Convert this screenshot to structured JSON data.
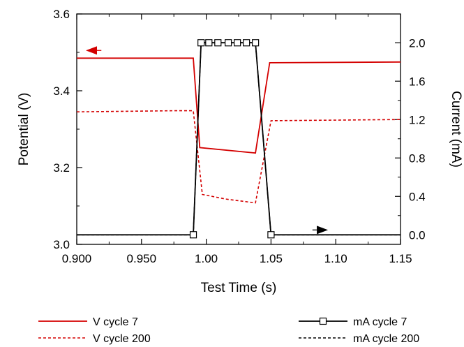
{
  "chart_data": {
    "type": "line",
    "title": "",
    "xlabel": "Test Time (s)",
    "ylabel_left": "Potential (V)",
    "ylabel_right": "Current (mA)",
    "xlim": [
      0.9,
      1.15
    ],
    "ylim_left": [
      3.0,
      3.6
    ],
    "ylim_right": [
      -0.1,
      2.3
    ],
    "x_ticks": [
      "0.900",
      "0.950",
      "1.00",
      "1.05",
      "1.10",
      "1.15"
    ],
    "x_tick_values": [
      0.9,
      0.95,
      1.0,
      1.05,
      1.1,
      1.15
    ],
    "y_left_ticks": [
      "3.0",
      "3.2",
      "3.4",
      "3.6"
    ],
    "y_left_tick_values": [
      3.0,
      3.2,
      3.4,
      3.6
    ],
    "y_right_ticks": [
      "0.0",
      "0.4",
      "0.8",
      "1.2",
      "1.6",
      "2.0"
    ],
    "y_right_tick_values": [
      0.0,
      0.4,
      0.8,
      1.2,
      1.6,
      2.0
    ],
    "grid": false,
    "legend": "bottom",
    "colors": {
      "voltage": "#d40000",
      "current": "#000000"
    },
    "series": [
      {
        "name": "V cycle 7",
        "axis": "left",
        "style": "solid",
        "color": "#d40000",
        "marker": "none",
        "x": [
          0.9,
          0.99,
          0.995,
          1.038,
          1.049,
          1.15
        ],
        "y": [
          3.485,
          3.485,
          3.252,
          3.238,
          3.473,
          3.475
        ]
      },
      {
        "name": "V cycle 200",
        "axis": "left",
        "style": "dashed",
        "color": "#d40000",
        "marker": "none",
        "x": [
          0.9,
          0.975,
          0.99,
          0.997,
          1.015,
          1.038,
          1.05,
          1.15
        ],
        "y": [
          3.345,
          3.348,
          3.348,
          3.13,
          3.118,
          3.108,
          3.322,
          3.325
        ]
      },
      {
        "name": "mA cycle 7",
        "axis": "right",
        "style": "solid",
        "color": "#000000",
        "marker": "square",
        "x": [
          0.9,
          0.99,
          0.996,
          1.002,
          1.009,
          1.017,
          1.024,
          1.031,
          1.038,
          1.05,
          1.15
        ],
        "y": [
          0.0,
          0.0,
          2.0,
          2.0,
          2.0,
          2.0,
          2.0,
          2.0,
          2.0,
          0.0,
          0.0
        ],
        "marker_x": [
          0.99,
          0.996,
          1.002,
          1.009,
          1.017,
          1.024,
          1.031,
          1.038,
          1.05
        ],
        "marker_y": [
          0.0,
          2.0,
          2.0,
          2.0,
          2.0,
          2.0,
          2.0,
          2.0,
          0.0
        ]
      },
      {
        "name": "mA cycle 200",
        "axis": "right",
        "style": "dashed",
        "color": "#000000",
        "marker": "none",
        "x": [
          0.9,
          0.99,
          0.996,
          1.038,
          1.05,
          1.15
        ],
        "y": [
          0.0,
          0.0,
          2.0,
          2.0,
          0.0,
          0.0
        ]
      }
    ],
    "annotations": [
      {
        "kind": "arrow",
        "direction": "left",
        "axis": "left",
        "color": "#d40000",
        "x1": 0.919,
        "x2": 0.907,
        "y": 3.505
      },
      {
        "kind": "arrow",
        "direction": "right",
        "axis": "right",
        "color": "#000000",
        "x1": 1.082,
        "x2": 1.094,
        "y": 0.05
      }
    ]
  }
}
